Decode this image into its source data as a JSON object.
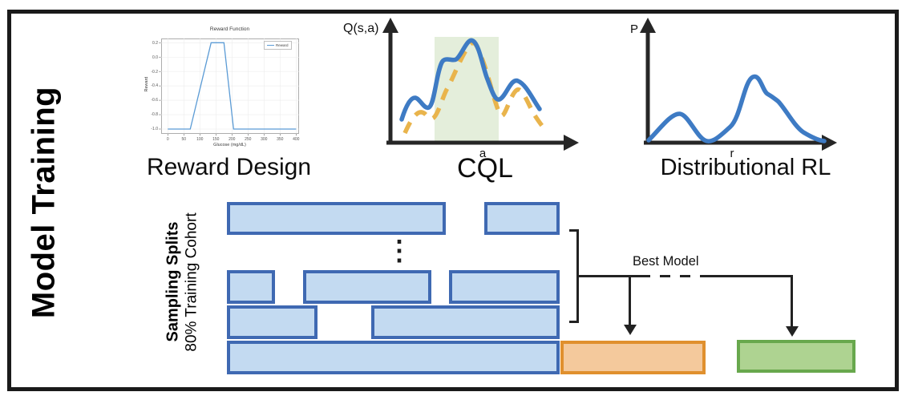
{
  "section_title": "Model Training",
  "panels": {
    "reward_design": {
      "caption": "Reward Design"
    },
    "cql": {
      "caption": "CQL",
      "y_axis_label": "Q(s,a)",
      "x_axis_label": "a"
    },
    "distributional_rl": {
      "caption": "Distributional RL",
      "y_axis_label": "P",
      "x_axis_label": "r"
    }
  },
  "chart_data": {
    "type": "line",
    "title": "Reward Function",
    "xlabel": "Glucose (mg/dL)",
    "ylabel": "Reward",
    "legend": "Reward",
    "x_ticks": [
      0,
      50,
      100,
      150,
      200,
      250,
      300,
      350,
      400
    ],
    "y_ticks": [
      "0.2",
      "0.0",
      "-0.2",
      "-0.4",
      "-0.6",
      "-0.8",
      "-1.0"
    ],
    "points": [
      [
        0,
        -1.0
      ],
      [
        70,
        -1.0
      ],
      [
        135,
        0.2
      ],
      [
        175,
        0.2
      ],
      [
        205,
        -1.0
      ],
      [
        400,
        -1.0
      ]
    ],
    "xlim": [
      0,
      400
    ],
    "ylim": [
      -1.0,
      0.2
    ],
    "grid": true,
    "legend_position": "upper right"
  },
  "sampling": {
    "label_primary": "Sampling Splits",
    "label_secondary": "80% Training Cohort",
    "ellipsis": "⋮"
  },
  "annotations": {
    "best_model": "Best Model"
  },
  "colors": {
    "split_fill": "#c3daf1",
    "split_border": "#3f69b2",
    "train_fill": "#f4c99c",
    "train_border": "#e0902e",
    "best_fill": "#aed391",
    "best_border": "#68a84d",
    "curve_blue": "#3e7bc4",
    "curve_orange": "#e9b44c",
    "cql_region": "#e4eedb",
    "axis_black": "#262626",
    "reward_line": "#5b9bd5"
  }
}
